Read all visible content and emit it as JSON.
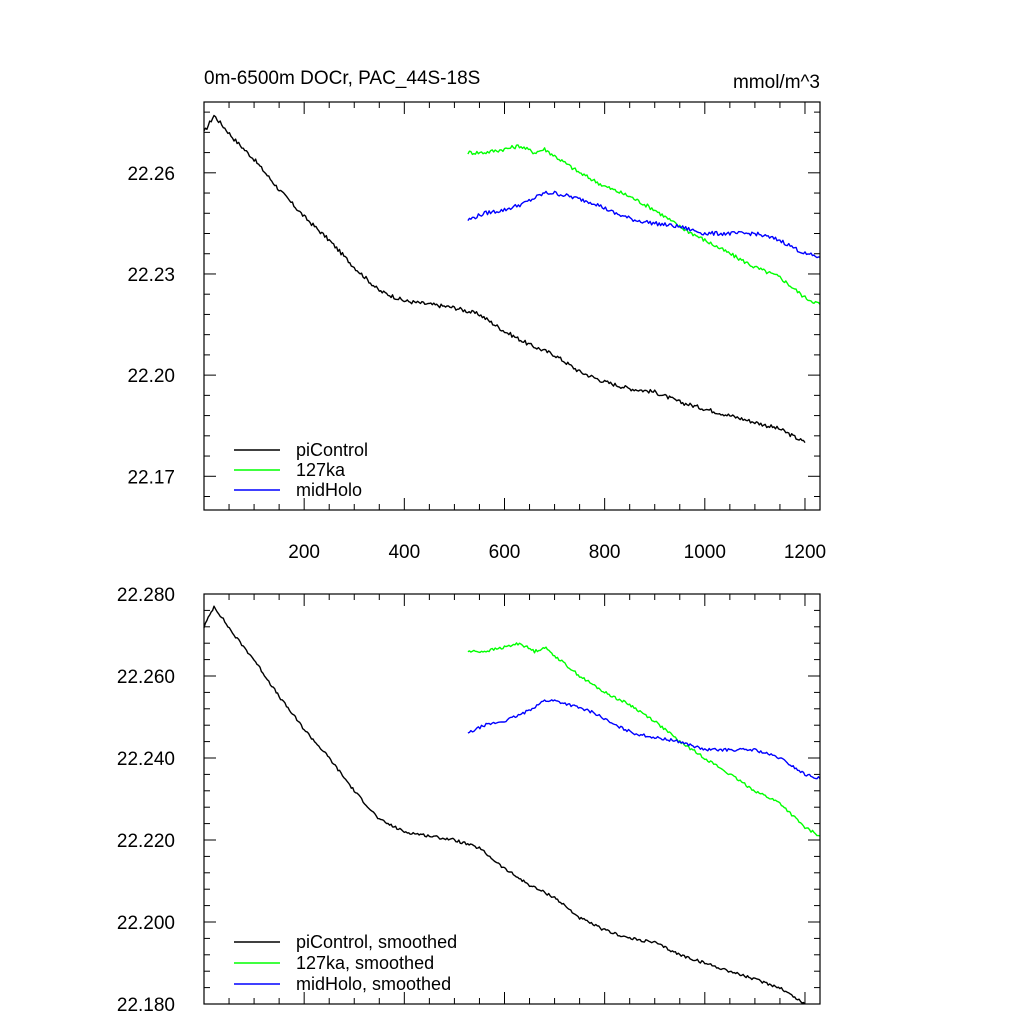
{
  "chart_data": [
    {
      "type": "line",
      "title_left": "0m-6500m DOCr, PAC_44S-18S",
      "title_right": "mmol/m^3",
      "xlim": [
        0,
        1230
      ],
      "ylim": [
        22.16,
        22.281
      ],
      "xticks": [
        200,
        400,
        600,
        800,
        1000,
        1200
      ],
      "xtick_labels": [
        "200",
        "400",
        "600",
        "800",
        "1000",
        "1200"
      ],
      "yticks": [
        22.17,
        22.2,
        22.23,
        22.26
      ],
      "ytick_labels": [
        "22.17",
        "22.20",
        "22.23",
        "22.26"
      ],
      "legend": [
        "piControl",
        "127ka",
        "midHolo"
      ],
      "legend_position": "bottom-left",
      "series": [
        {
          "name": "piControl",
          "color": "#000000",
          "x": [
            0,
            20,
            60,
            100,
            150,
            200,
            250,
            300,
            350,
            400,
            450,
            500,
            550,
            600,
            650,
            700,
            750,
            800,
            850,
            900,
            950,
            1000,
            1050,
            1100,
            1150,
            1200
          ],
          "y": [
            22.272,
            22.277,
            22.27,
            22.264,
            22.255,
            22.247,
            22.24,
            22.232,
            22.225,
            22.222,
            22.221,
            22.22,
            22.218,
            22.213,
            22.209,
            22.206,
            22.201,
            22.198,
            22.196,
            22.195,
            22.192,
            22.19,
            22.188,
            22.186,
            22.184,
            22.18
          ]
        },
        {
          "name": "127ka",
          "color": "#00ff00",
          "x": [
            527,
            560,
            600,
            630,
            660,
            680,
            700,
            750,
            800,
            850,
            900,
            950,
            1000,
            1050,
            1100,
            1150,
            1200,
            1230
          ],
          "y": [
            22.266,
            22.266,
            22.267,
            22.268,
            22.266,
            22.267,
            22.265,
            22.26,
            22.256,
            22.253,
            22.249,
            22.244,
            22.24,
            22.236,
            22.232,
            22.229,
            22.223,
            22.221
          ]
        },
        {
          "name": "midHolo",
          "color": "#0000ff",
          "x": [
            527,
            560,
            600,
            640,
            680,
            700,
            730,
            780,
            820,
            860,
            900,
            950,
            1000,
            1050,
            1100,
            1150,
            1200,
            1230
          ],
          "y": [
            22.246,
            22.248,
            22.249,
            22.251,
            22.254,
            22.254,
            22.253,
            22.251,
            22.248,
            22.246,
            22.245,
            22.244,
            22.242,
            22.242,
            22.242,
            22.24,
            22.236,
            22.235
          ]
        }
      ]
    },
    {
      "type": "line",
      "xlim": [
        0,
        1230
      ],
      "ylim": [
        22.18,
        22.28
      ],
      "xticks": [
        200,
        400,
        600,
        800,
        1000,
        1200
      ],
      "yticks": [
        22.18,
        22.2,
        22.22,
        22.24,
        22.26,
        22.28
      ],
      "ytick_labels": [
        "22.180",
        "22.200",
        "22.220",
        "22.240",
        "22.260",
        "22.280"
      ],
      "legend": [
        "piControl, smoothed",
        "127ka, smoothed",
        "midHolo, smoothed"
      ],
      "legend_position": "bottom-left",
      "series": [
        {
          "name": "piControl, smoothed",
          "color": "#000000",
          "x": [
            0,
            20,
            60,
            100,
            150,
            200,
            250,
            300,
            350,
            400,
            450,
            500,
            550,
            600,
            650,
            700,
            750,
            800,
            850,
            900,
            950,
            1000,
            1050,
            1100,
            1150,
            1200
          ],
          "y": [
            22.272,
            22.277,
            22.27,
            22.264,
            22.255,
            22.247,
            22.24,
            22.232,
            22.225,
            22.222,
            22.221,
            22.22,
            22.218,
            22.213,
            22.209,
            22.206,
            22.201,
            22.198,
            22.196,
            22.195,
            22.192,
            22.19,
            22.188,
            22.186,
            22.184,
            22.18
          ]
        },
        {
          "name": "127ka, smoothed",
          "color": "#00ff00",
          "x": [
            527,
            560,
            600,
            630,
            660,
            680,
            700,
            750,
            800,
            850,
            900,
            950,
            1000,
            1050,
            1100,
            1150,
            1200,
            1230
          ],
          "y": [
            22.266,
            22.266,
            22.267,
            22.268,
            22.266,
            22.267,
            22.265,
            22.26,
            22.256,
            22.253,
            22.249,
            22.244,
            22.24,
            22.236,
            22.232,
            22.229,
            22.223,
            22.221
          ]
        },
        {
          "name": "midHolo, smoothed",
          "color": "#0000ff",
          "x": [
            527,
            560,
            600,
            640,
            680,
            700,
            730,
            780,
            820,
            860,
            900,
            950,
            1000,
            1050,
            1100,
            1150,
            1200,
            1230
          ],
          "y": [
            22.246,
            22.248,
            22.249,
            22.251,
            22.254,
            22.254,
            22.253,
            22.251,
            22.248,
            22.246,
            22.245,
            22.244,
            22.242,
            22.242,
            22.242,
            22.24,
            22.236,
            22.235
          ]
        }
      ]
    }
  ]
}
